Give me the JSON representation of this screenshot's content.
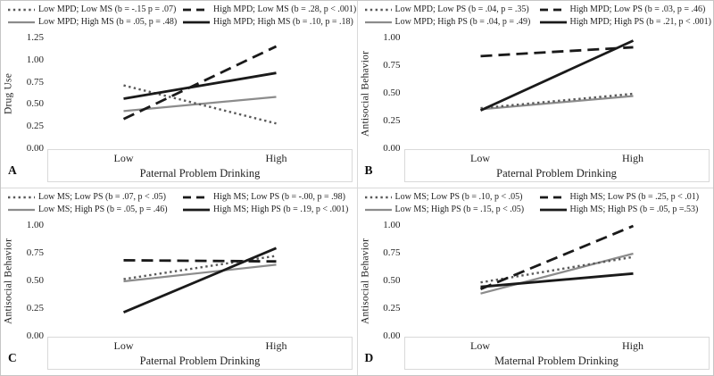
{
  "figure": {
    "rows": 2,
    "cols": 2,
    "background": "#ffffff",
    "divider_color": "#d9d9d9",
    "outer_border_color": "#c6c6c6"
  },
  "colors": {
    "black_line": "#1a1a1a",
    "gray_line": "#8c8c8c",
    "dotted_gray_line": "#595959",
    "text": "#1f1f1f",
    "axis_box_border": "#d9d9d9"
  },
  "line_styles": {
    "dotted-gray": {
      "color": "#595959",
      "width": 2.4,
      "dash": "2.4 3.4",
      "legend_dash": "2.4 3.4"
    },
    "dashed-black": {
      "color": "#1a1a1a",
      "width": 2.8,
      "dash": "13 7",
      "legend_dash": "9 6"
    },
    "solid-gray": {
      "color": "#8c8c8c",
      "width": 2.2,
      "dash": "",
      "legend_dash": ""
    },
    "solid-black": {
      "color": "#1a1a1a",
      "width": 2.8,
      "dash": "",
      "legend_dash": ""
    }
  },
  "chart_data": [
    {
      "type": "line",
      "panel": "A",
      "xlabel": "Paternal Problem Drinking",
      "ylabel": "Drug Use",
      "x_categories": [
        "Low",
        "High"
      ],
      "ylim": [
        0,
        1.25
      ],
      "y_ticks": [
        1.25,
        1.0,
        0.75,
        0.5,
        0.25,
        0.0
      ],
      "y_tick_labels": [
        "1.25",
        "1.00",
        "0.75",
        "0.50",
        "0.25",
        "0.00"
      ],
      "grid": false,
      "legend_position": "top",
      "series": [
        {
          "name": "Low MPD; Low MS (b = -.15 p = .07)",
          "style": "dotted-gray",
          "values": [
            0.72,
            0.29
          ]
        },
        {
          "name": "High MPD; Low MS (b = .28, p < .001)",
          "style": "dashed-black",
          "values": [
            0.34,
            1.16
          ]
        },
        {
          "name": "Low MPD; High MS (b = .05, p = .48)",
          "style": "solid-gray",
          "values": [
            0.43,
            0.59
          ]
        },
        {
          "name": "High MPD; High MS (b = .10, p = .18)",
          "style": "solid-black",
          "values": [
            0.57,
            0.86
          ]
        }
      ]
    },
    {
      "type": "line",
      "panel": "B",
      "xlabel": "Paternal Problem Drinking",
      "ylabel": "Antisocial Behavior",
      "x_categories": [
        "Low",
        "High"
      ],
      "ylim": [
        0,
        1.0
      ],
      "y_ticks": [
        1.0,
        0.75,
        0.5,
        0.25,
        0.0
      ],
      "y_tick_labels": [
        "1.00",
        "0.75",
        "0.50",
        "0.25",
        "0.00"
      ],
      "grid": false,
      "legend_position": "top",
      "series": [
        {
          "name": "Low MPD; Low PS (b = .04, p = .35)",
          "style": "dotted-gray",
          "values": [
            0.37,
            0.5
          ]
        },
        {
          "name": "High MPD; Low PS (b = .03, p = .46)",
          "style": "dashed-black",
          "values": [
            0.84,
            0.92
          ]
        },
        {
          "name": "Low MPD; High PS (b = .04, p = .49)",
          "style": "solid-gray",
          "values": [
            0.36,
            0.48
          ]
        },
        {
          "name": "High MPD; High PS (b = .21, p < .001)",
          "style": "solid-black",
          "values": [
            0.35,
            0.98
          ]
        }
      ]
    },
    {
      "type": "line",
      "panel": "C",
      "xlabel": "Paternal Problem Drinking",
      "ylabel": "Antisocial Behavior",
      "x_categories": [
        "Low",
        "High"
      ],
      "ylim": [
        0,
        1.0
      ],
      "y_ticks": [
        1.0,
        0.75,
        0.5,
        0.25,
        0.0
      ],
      "y_tick_labels": [
        "1.00",
        "0.75",
        "0.50",
        "0.25",
        "0.00"
      ],
      "grid": false,
      "legend_position": "top",
      "series": [
        {
          "name": "Low MS; Low PS (b = .07, p < .05)",
          "style": "dotted-gray",
          "values": [
            0.52,
            0.73
          ]
        },
        {
          "name": "High MS; Low PS (b = -.00, p = .98)",
          "style": "dashed-black",
          "values": [
            0.69,
            0.68
          ]
        },
        {
          "name": "Low MS; High PS (b = .05, p = .46)",
          "style": "solid-gray",
          "values": [
            0.5,
            0.65
          ]
        },
        {
          "name": "High MS; High PS (b = .19, p < .001)",
          "style": "solid-black",
          "values": [
            0.22,
            0.8
          ]
        }
      ]
    },
    {
      "type": "line",
      "panel": "D",
      "xlabel": "Maternal Problem Drinking",
      "ylabel": "Antisocial Behavior",
      "x_categories": [
        "Low",
        "High"
      ],
      "ylim": [
        0,
        1.0
      ],
      "y_ticks": [
        1.0,
        0.75,
        0.5,
        0.25,
        0.0
      ],
      "y_tick_labels": [
        "1.00",
        "0.75",
        "0.50",
        "0.25",
        "0.00"
      ],
      "grid": false,
      "legend_position": "top",
      "series": [
        {
          "name": "Low MS; Low PS (b = .10, p < .05)",
          "style": "dotted-gray",
          "values": [
            0.49,
            0.72
          ]
        },
        {
          "name": "High MS; Low PS (b = .25, p < .01)",
          "style": "dashed-black",
          "values": [
            0.43,
            1.0
          ]
        },
        {
          "name": "Low MS; High PS (b = .15, p < .05)",
          "style": "solid-gray",
          "values": [
            0.39,
            0.75
          ]
        },
        {
          "name": "High MS; High PS (b = .05, p =.53)",
          "style": "solid-black",
          "values": [
            0.45,
            0.57
          ]
        }
      ]
    }
  ]
}
